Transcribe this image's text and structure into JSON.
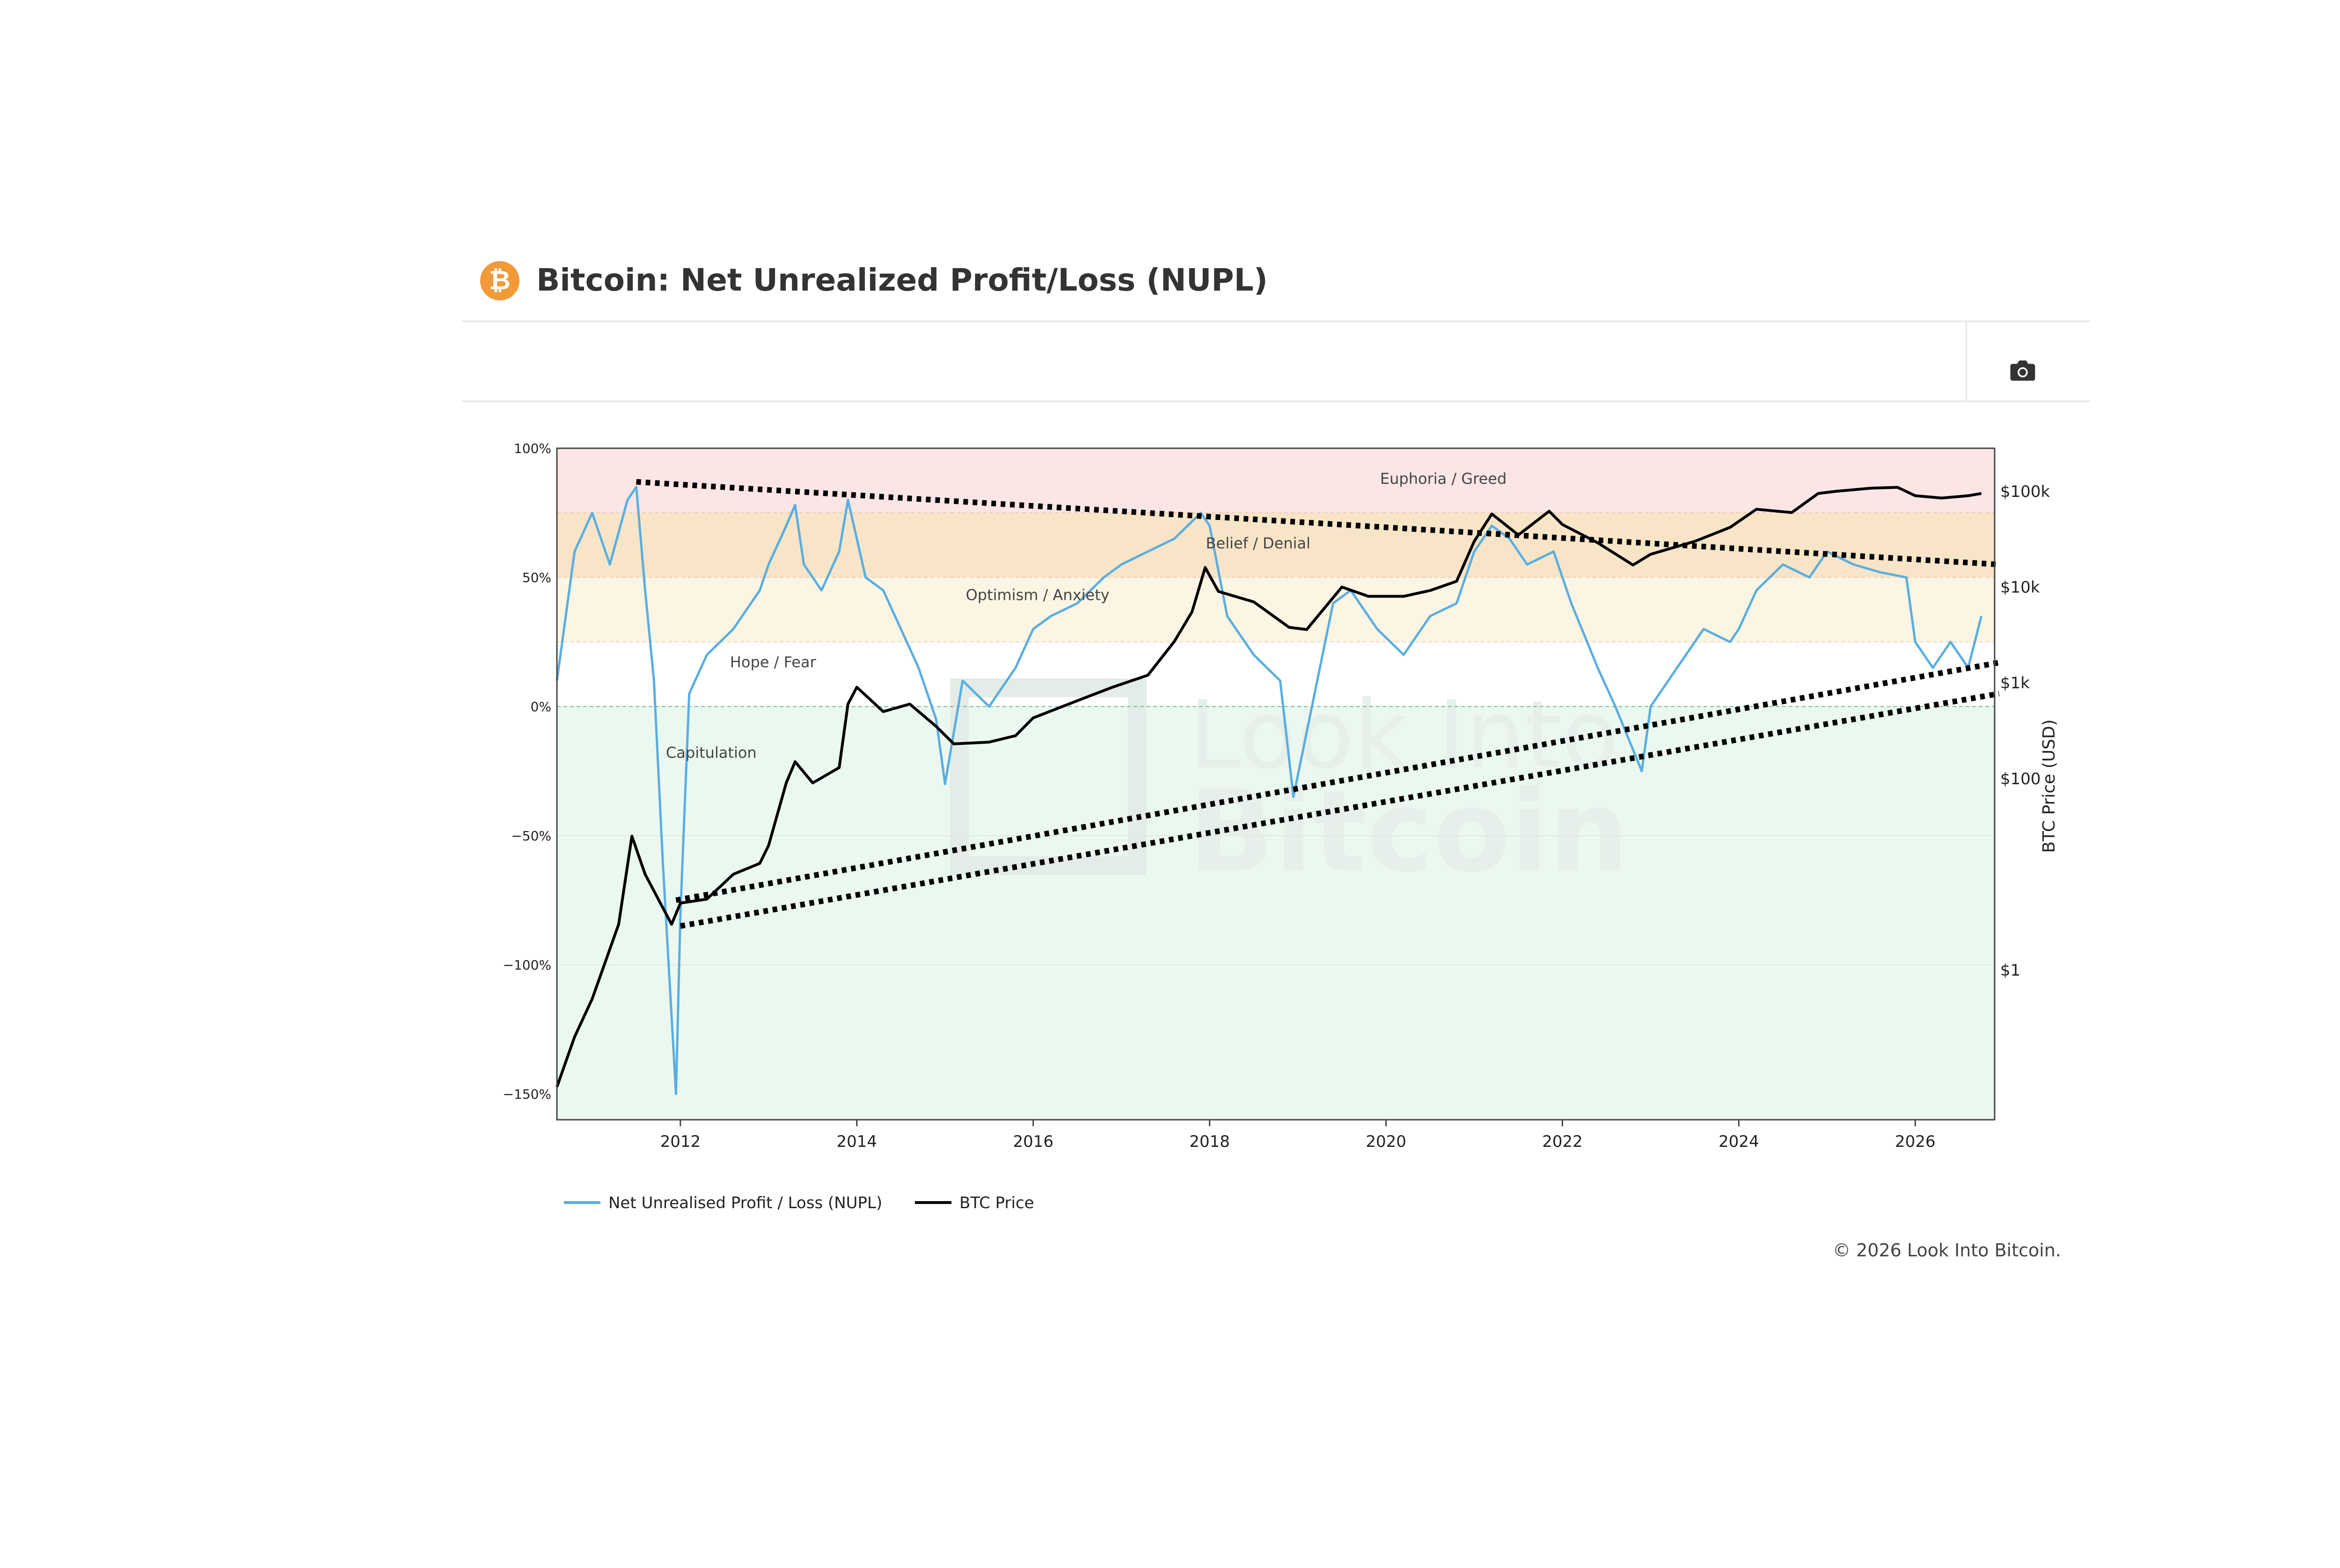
{
  "header": {
    "title": "Bitcoin: Net Unrealized Profit/Loss (NUPL)",
    "logo_icon": "bitcoin-logo-icon"
  },
  "toolbar": {
    "camera_icon": "camera-icon"
  },
  "colors": {
    "nupl": "#5aaee0",
    "price": "#000000",
    "euphoria": "#fbe5e5",
    "belief": "#f8e5c8",
    "optimism": "#fdf5e4",
    "capitulation": "#ebf8f0",
    "logo": "#f29a38"
  },
  "chart_data": {
    "type": "line",
    "x_axis": {
      "ticks": [
        "2012",
        "2014",
        "2016",
        "2018",
        "2020",
        "2022",
        "2024",
        "2026"
      ],
      "range": [
        2010.6,
        2026.9
      ]
    },
    "y_axis_left": {
      "ticks": [
        "100%",
        "50%",
        "0%",
        "−50%",
        "−100%",
        "−150%"
      ],
      "range": [
        -160,
        100
      ]
    },
    "y_axis_right": {
      "label": "BTC Price (USD)",
      "ticks": [
        "$100k",
        "$10k",
        "$1k",
        "$100",
        "$1"
      ],
      "log": true
    },
    "zones": [
      {
        "label": "Euphoria / Greed",
        "from": 75,
        "to": 100
      },
      {
        "label": "Belief / Denial",
        "from": 50,
        "to": 75
      },
      {
        "label": "Optimism / Anxiety",
        "from": 25,
        "to": 50
      },
      {
        "label": "Hope / Fear",
        "from": 0,
        "to": 25
      },
      {
        "label": "Capitulation",
        "from": -160,
        "to": 0
      }
    ],
    "series": [
      {
        "name": "Net Unrealised Profit / Loss (NUPL)",
        "axis": "left",
        "x": [
          2010.6,
          2010.8,
          2011.0,
          2011.2,
          2011.4,
          2011.5,
          2011.6,
          2011.7,
          2011.8,
          2011.9,
          2011.95,
          2012.0,
          2012.1,
          2012.3,
          2012.6,
          2012.9,
          2013.0,
          2013.2,
          2013.3,
          2013.4,
          2013.6,
          2013.8,
          2013.9,
          2014.0,
          2014.1,
          2014.3,
          2014.5,
          2014.7,
          2014.9,
          2015.0,
          2015.1,
          2015.2,
          2015.5,
          2015.8,
          2016.0,
          2016.2,
          2016.5,
          2016.8,
          2017.0,
          2017.3,
          2017.6,
          2017.9,
          2018.0,
          2018.2,
          2018.5,
          2018.8,
          2018.95,
          2019.1,
          2019.4,
          2019.6,
          2019.9,
          2020.2,
          2020.5,
          2020.8,
          2021.0,
          2021.2,
          2021.4,
          2021.6,
          2021.9,
          2022.1,
          2022.4,
          2022.6,
          2022.9,
          2023.0,
          2023.3,
          2023.6,
          2023.9,
          2024.0,
          2024.2,
          2024.5,
          2024.8,
          2025.0,
          2025.3,
          2025.6,
          2025.9,
          2026.0,
          2026.2,
          2026.4,
          2026.6,
          2026.75
        ],
        "y": [
          10,
          60,
          75,
          55,
          80,
          85,
          45,
          10,
          -60,
          -120,
          -150,
          -80,
          5,
          20,
          30,
          45,
          55,
          70,
          78,
          55,
          45,
          60,
          80,
          65,
          50,
          45,
          30,
          15,
          -5,
          -30,
          -10,
          10,
          0,
          15,
          30,
          35,
          40,
          50,
          55,
          60,
          65,
          75,
          70,
          35,
          20,
          10,
          -35,
          -10,
          40,
          45,
          30,
          20,
          35,
          40,
          60,
          70,
          65,
          55,
          60,
          40,
          15,
          0,
          -25,
          0,
          15,
          30,
          25,
          30,
          45,
          55,
          50,
          60,
          55,
          52,
          50,
          25,
          15,
          25,
          15,
          35
        ]
      },
      {
        "name": "BTC Price",
        "axis": "right",
        "x": [
          2010.6,
          2010.8,
          2011.0,
          2011.3,
          2011.45,
          2011.6,
          2011.9,
          2012.0,
          2012.3,
          2012.6,
          2012.9,
          2013.0,
          2013.2,
          2013.3,
          2013.5,
          2013.8,
          2013.9,
          2014.0,
          2014.3,
          2014.6,
          2014.9,
          2015.1,
          2015.5,
          2015.8,
          2016.0,
          2016.5,
          2016.9,
          2017.3,
          2017.6,
          2017.8,
          2017.95,
          2018.1,
          2018.5,
          2018.9,
          2019.1,
          2019.5,
          2019.8,
          2020.2,
          2020.5,
          2020.8,
          2021.0,
          2021.2,
          2021.5,
          2021.85,
          2022.0,
          2022.4,
          2022.8,
          2023.0,
          2023.5,
          2023.9,
          2024.2,
          2024.6,
          2024.9,
          2025.1,
          2025.5,
          2025.8,
          2026.0,
          2026.3,
          2026.6,
          2026.75
        ],
        "y": [
          0.06,
          0.2,
          0.5,
          3,
          25,
          10,
          3,
          5,
          5.5,
          10,
          13,
          20,
          90,
          150,
          90,
          130,
          600,
          900,
          500,
          600,
          350,
          230,
          240,
          280,
          430,
          650,
          900,
          1200,
          2700,
          5500,
          16000,
          9000,
          7000,
          3800,
          3600,
          10000,
          8000,
          8000,
          9200,
          11500,
          30000,
          58000,
          35000,
          62000,
          45000,
          29000,
          17000,
          22000,
          30000,
          42000,
          65000,
          60000,
          95000,
          100000,
          108000,
          110000,
          90000,
          85000,
          90000,
          95000
        ]
      }
    ],
    "trendlines": [
      {
        "name": "upper-resistance",
        "x": [
          2011.5,
          2026.95
        ],
        "y": [
          87,
          55
        ]
      },
      {
        "name": "support-upper",
        "x": [
          2011.95,
          2026.95
        ],
        "y": [
          -75,
          17
        ]
      },
      {
        "name": "support-lower",
        "x": [
          2012.0,
          2026.95
        ],
        "y": [
          -85,
          5
        ]
      }
    ]
  },
  "legend": [
    {
      "label": "Net Unrealised Profit / Loss (NUPL)",
      "color": "#5aaee0"
    },
    {
      "label": "BTC Price",
      "color": "#000000"
    }
  ],
  "footer": {
    "copyright": "© 2026 Look Into Bitcoin."
  },
  "watermark": {
    "line1": "Look Into",
    "line2": "Bitcoin"
  }
}
